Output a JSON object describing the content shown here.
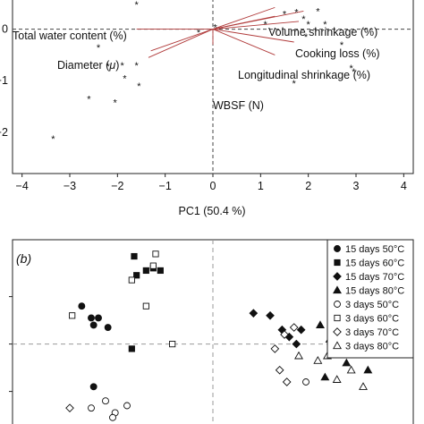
{
  "chart_data": [
    {
      "type": "scatter",
      "panel": "a",
      "xlabel": "PC1 (50.4 %)",
      "ylabel": "",
      "xlim": [
        -4.2,
        4.2
      ],
      "ylim": [
        -2.8,
        0.6
      ],
      "x_ticks": [
        -4,
        -3,
        -2,
        -1,
        0,
        1,
        2,
        3,
        4
      ],
      "x_tick_labels": [
        "−4",
        "−3",
        "−2",
        "−1",
        "0",
        "1",
        "2",
        "3",
        "4"
      ],
      "y_tick_labels": [
        "0",
        "−1",
        "−2"
      ],
      "reference_lines": {
        "x": 0,
        "y": 0,
        "style": "dashed"
      },
      "loadings_color": "#b03a3a",
      "points": [
        {
          "x": -1.6,
          "y": 0.48
        },
        {
          "x": 0.05,
          "y": 0.04
        },
        {
          "x": 1.1,
          "y": 0.1
        },
        {
          "x": 1.5,
          "y": 0.3
        },
        {
          "x": 1.75,
          "y": 0.33
        },
        {
          "x": 2.2,
          "y": 0.35
        },
        {
          "x": 1.9,
          "y": 0.2
        },
        {
          "x": 2.0,
          "y": 0.1
        },
        {
          "x": 2.35,
          "y": 0.1
        },
        {
          "x": 1.95,
          "y": -0.15
        },
        {
          "x": 2.7,
          "y": -0.3
        },
        {
          "x": 2.9,
          "y": -0.75
        },
        {
          "x": 2.95,
          "y": -0.82
        },
        {
          "x": -0.3,
          "y": -0.06
        },
        {
          "x": -2.4,
          "y": -0.35
        },
        {
          "x": -1.9,
          "y": -0.7
        },
        {
          "x": -1.6,
          "y": -0.7
        },
        {
          "x": -2.2,
          "y": -0.72
        },
        {
          "x": -1.85,
          "y": -0.95
        },
        {
          "x": -1.55,
          "y": -1.1
        },
        {
          "x": -2.6,
          "y": -1.35
        },
        {
          "x": -2.05,
          "y": -1.42
        },
        {
          "x": -3.35,
          "y": -2.12
        },
        {
          "x": 1.7,
          "y": -1.05
        }
      ],
      "loadings": [
        {
          "label": "Total water content (%)",
          "x": -1.6,
          "y": 0.0
        },
        {
          "label": "Volume shrinkage (%)",
          "x": 1.3,
          "y": 0.25
        },
        {
          "label": "Volume shrinkage (%)",
          "x": 1.3,
          "y": 0.42
        },
        {
          "label": "Volume shrinkage (%)",
          "x": 1.9,
          "y": 0.35
        },
        {
          "label": "Cooking loss (%)",
          "x": 1.8,
          "y": 0.15
        },
        {
          "label": "Cooking loss (%)",
          "x": 1.7,
          "y": -0.25
        },
        {
          "label": "Longitudinal shrinkage (%)",
          "x": 1.3,
          "y": -0.5
        },
        {
          "label": "Diameter (µ)",
          "x": -1.3,
          "y": -0.42
        },
        {
          "label": "Diameter (µ)",
          "x": -1.35,
          "y": -0.55
        },
        {
          "label": "WBSF (N)",
          "x": 0.0,
          "y": -0.3
        }
      ],
      "variable_labels": [
        "Total water content (%)",
        "Volume shrinkage (%)",
        "Cooking loss (%)",
        "Longitudinal shrinkage (%)",
        "WBSF (N)"
      ],
      "diameter_label": {
        "prefix": "Diameter (",
        "mu": "μ",
        "suffix": ")"
      }
    },
    {
      "type": "scatter",
      "panel": "b",
      "panel_label": "(b)",
      "xlim": [
        -4.2,
        4.2
      ],
      "ylim": [
        -1.8,
        2.2
      ],
      "reference_lines": {
        "x": 0,
        "y": 0,
        "style": "dashed"
      },
      "legend_placement": "top-right",
      "series": [
        {
          "name": "15 days 50°C",
          "marker": "circle",
          "filled": true,
          "points": [
            [
              -2.75,
              0.8
            ],
            [
              -2.55,
              0.55
            ],
            [
              -2.4,
              0.55
            ],
            [
              -2.5,
              0.4
            ],
            [
              -2.2,
              0.35
            ],
            [
              -2.5,
              -0.9
            ]
          ]
        },
        {
          "name": "15 days 60°C",
          "marker": "square",
          "filled": true,
          "points": [
            [
              -1.65,
              1.85
            ],
            [
              -1.6,
              1.45
            ],
            [
              -1.4,
              1.55
            ],
            [
              -1.25,
              1.6
            ],
            [
              -1.1,
              1.55
            ],
            [
              -1.7,
              -0.1
            ]
          ]
        },
        {
          "name": "15 days 70°C",
          "marker": "diamond",
          "filled": true,
          "points": [
            [
              0.85,
              0.65
            ],
            [
              1.2,
              0.6
            ],
            [
              1.45,
              0.3
            ],
            [
              1.85,
              0.3
            ],
            [
              1.6,
              0.15
            ],
            [
              1.75,
              0.0
            ]
          ]
        },
        {
          "name": "15 days 80°C",
          "marker": "triangle",
          "filled": true,
          "points": [
            [
              2.25,
              0.4
            ],
            [
              2.45,
              0.1
            ],
            [
              2.55,
              -0.1
            ],
            [
              2.8,
              -0.4
            ],
            [
              3.25,
              -0.55
            ],
            [
              2.35,
              -0.7
            ]
          ]
        },
        {
          "name": "3 days 50°C",
          "marker": "circle",
          "filled": false,
          "points": [
            [
              -2.55,
              -1.35
            ],
            [
              -2.25,
              -1.2
            ],
            [
              -2.05,
              -1.45
            ],
            [
              -1.8,
              -1.3
            ],
            [
              -2.1,
              -1.55
            ],
            [
              1.95,
              -0.8
            ]
          ]
        },
        {
          "name": "3 days 60°C",
          "marker": "square",
          "filled": false,
          "points": [
            [
              -1.25,
              1.65
            ],
            [
              -1.7,
              1.35
            ],
            [
              -1.2,
              1.9
            ],
            [
              -1.4,
              0.8
            ],
            [
              -2.95,
              0.6
            ],
            [
              -0.85,
              0.0
            ]
          ]
        },
        {
          "name": "3 days 70°C",
          "marker": "diamond",
          "filled": false,
          "points": [
            [
              1.3,
              -0.1
            ],
            [
              1.7,
              0.35
            ],
            [
              1.5,
              0.2
            ],
            [
              1.4,
              -0.55
            ],
            [
              1.55,
              -0.8
            ],
            [
              -3.0,
              -1.35
            ]
          ]
        },
        {
          "name": "3 days 80°C",
          "marker": "triangle",
          "filled": false,
          "points": [
            [
              1.8,
              -0.25
            ],
            [
              2.4,
              -0.25
            ],
            [
              2.2,
              -0.35
            ],
            [
              2.6,
              -0.75
            ],
            [
              2.9,
              -0.55
            ],
            [
              3.15,
              -0.9
            ]
          ]
        }
      ]
    }
  ]
}
